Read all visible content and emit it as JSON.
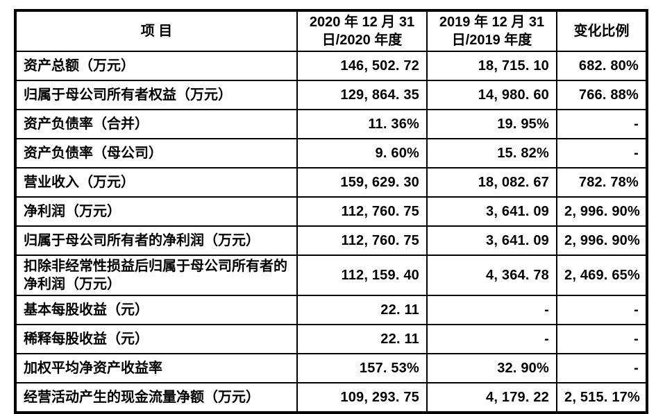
{
  "page": {
    "background_color": "#ffffff",
    "text_color": "#000000",
    "border_color": "#000000"
  },
  "table": {
    "headers": {
      "item": "项 目",
      "period_2020": "2020 年 12 月 31\n日/2020 年度",
      "period_2019": "2019 年 12 月 31\n日/2019 年度",
      "change": "变化比例"
    },
    "rows": [
      {
        "label": "资产总额（万元）",
        "y2020": "146, 502. 72",
        "y2019": "18, 715. 10",
        "change": "682. 80%"
      },
      {
        "label": "归属于母公司所有者权益（万元）",
        "y2020": "129, 864. 35",
        "y2019": "14, 980. 60",
        "change": "766. 88%"
      },
      {
        "label": "资产负债率（合并）",
        "y2020": "11. 36%",
        "y2019": "19. 95%",
        "change": "-"
      },
      {
        "label": "资产负债率（母公司）",
        "y2020": "9. 60%",
        "y2019": "15. 82%",
        "change": "-"
      },
      {
        "label": "营业收入（万元）",
        "y2020": "159, 629. 30",
        "y2019": "18, 082. 67",
        "change": "782. 78%"
      },
      {
        "label": "净利润（万元）",
        "y2020": "112, 760. 75",
        "y2019": "3, 641. 09",
        "change": "2, 996. 90%"
      },
      {
        "label": "归属于母公司所有者的净利润（万元）",
        "y2020": "112, 760. 75",
        "y2019": "3, 641. 09",
        "change": "2, 996. 90%"
      },
      {
        "label": "扣除非经常性损益后归属于母公司所有者的净利润（万元）",
        "y2020": "112, 159. 40",
        "y2019": "4, 364. 78",
        "change": "2, 469. 65%"
      },
      {
        "label": "基本每股收益（元）",
        "y2020": "22. 11",
        "y2019": "-",
        "change": "-"
      },
      {
        "label": "稀释每股收益（元）",
        "y2020": "22. 11",
        "y2019": "-",
        "change": "-"
      },
      {
        "label": "加权平均净资产收益率",
        "y2020": "157. 53%",
        "y2019": "32. 90%",
        "change": "-"
      },
      {
        "label": "经营活动产生的现金流量净额（万元）",
        "y2020": "109, 293. 75",
        "y2019": "4, 179. 22",
        "change": "2, 515. 17%"
      }
    ]
  }
}
